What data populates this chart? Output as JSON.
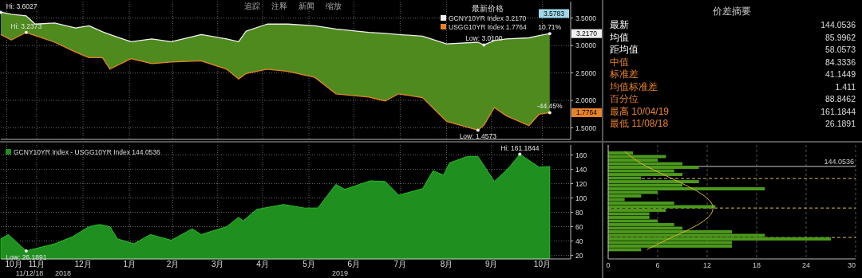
{
  "chart_data": [
    {
      "type": "line",
      "x": [
        "2018-10-22",
        "2018-10-29",
        "2018-11-08",
        "2018-11-14",
        "2018-11-27",
        "2018-12-11",
        "2018-12-20",
        "2018-12-29",
        "2019-01-03",
        "2019-01-17",
        "2019-01-31",
        "2019-02-13",
        "2019-03-05",
        "2019-03-22",
        "2019-03-30",
        "2019-04-04",
        "2019-04-18",
        "2019-05-02",
        "2019-05-20",
        "2019-06-03",
        "2019-06-25",
        "2019-07-06",
        "2019-07-15",
        "2019-07-31",
        "2019-08-16",
        "2019-09-06",
        "2019-09-10",
        "2019-09-17",
        "2019-09-25",
        "2019-10-10",
        "2019-10-17",
        "2019-10-24"
      ],
      "series": [
        {
          "name": "GCNY10YR Index 3.2170",
          "color": "#f0f0f0",
          "values": [
            3.61,
            3.57,
            3.54,
            3.39,
            3.41,
            3.32,
            3.36,
            3.25,
            3.2,
            3.07,
            3.12,
            3.07,
            3.2,
            3.12,
            3.07,
            3.26,
            3.39,
            3.39,
            3.36,
            3.3,
            3.24,
            3.22,
            3.2,
            3.17,
            3.03,
            3.06,
            3.01,
            3.09,
            3.12,
            3.14,
            3.18,
            3.217
          ],
          "lower": [
            3.2,
            3.1,
            3.2373,
            3.18,
            3.06,
            2.88,
            2.78,
            2.78,
            2.57,
            2.76,
            2.67,
            2.7,
            2.72,
            2.57,
            2.39,
            2.49,
            2.57,
            2.53,
            2.42,
            2.12,
            2.06,
            1.99,
            2.12,
            2.05,
            1.62,
            1.4573,
            1.55,
            1.87,
            1.72,
            1.54,
            1.75,
            1.7764
          ],
          "upper": [
            3.61,
            3.57,
            3.54,
            3.39,
            3.41,
            3.32,
            3.36,
            3.25,
            3.2,
            3.07,
            3.12,
            3.07,
            3.2,
            3.12,
            3.07,
            3.26,
            3.39,
            3.39,
            3.36,
            3.3,
            3.24,
            3.22,
            3.2,
            3.17,
            3.03,
            3.06,
            3.01,
            3.09,
            3.12,
            3.14,
            3.18,
            3.217
          ]
        },
        {
          "name": "USGG10YR Index 1.7764",
          "color": "#e8832a",
          "values": [
            3.2,
            3.1,
            3.2373,
            3.18,
            3.06,
            2.88,
            2.78,
            2.78,
            2.57,
            2.76,
            2.67,
            2.7,
            2.72,
            2.57,
            2.39,
            2.49,
            2.57,
            2.53,
            2.42,
            2.12,
            2.06,
            1.99,
            2.12,
            2.05,
            1.62,
            1.4573,
            1.55,
            1.87,
            1.72,
            1.54,
            1.75,
            1.7764
          ]
        }
      ],
      "xlim": [
        "2018-10-22",
        "2019-11-07"
      ],
      "xticks": [
        {
          "value": "2018-10-26",
          "label": null
        },
        {
          "value": "2018-11-15",
          "label": null
        },
        {
          "value": "2018-12-16",
          "label": null
        },
        {
          "value": "2019-01-16",
          "label": null
        },
        {
          "value": "2019-02-14",
          "label": null
        },
        {
          "value": "2019-03-16",
          "label": null
        },
        {
          "value": "2019-04-15",
          "label": null
        },
        {
          "value": "2019-05-16",
          "label": null
        },
        {
          "value": "2019-06-15",
          "label": null
        },
        {
          "value": "2019-07-16",
          "label": null
        },
        {
          "value": "2019-08-16",
          "label": null
        },
        {
          "value": "2019-09-15",
          "label": null
        },
        {
          "value": "2019-10-19",
          "label": null
        }
      ],
      "ylim": [
        1.29,
        3.8
      ],
      "yticks": [
        {
          "value": 1.5,
          "label": "1.5000"
        },
        {
          "value": 2,
          "label": "2.0000"
        },
        {
          "value": 2.5,
          "label": "2.5000"
        },
        {
          "value": 3,
          "label": "3.0000"
        },
        {
          "value": 3.5,
          "label": "3.5000"
        }
      ],
      "grid": true,
      "legend": "top right",
      "legend_title": "最新价格",
      "tick_labels": "y",
      "annotations": [
        "追踪",
        "注释",
        "新闻",
        "缩放",
        {
          "text": "Hi: 3.6027",
          "x": "2018-10-22",
          "y": 3.6027
        },
        {
          "text": "Hi: 3.2373",
          "x": "2018-11-08",
          "y": 3.2373
        },
        {
          "text": "Low: 3.0100",
          "x": "2019-09-10",
          "y": 3.01
        },
        {
          "text": "Low: 1.4573",
          "x": "2019-09-06",
          "y": 1.4573
        },
        {
          "text": "10.71%",
          "x": "2019-10-24",
          "y": 3.217
        },
        {
          "text": "-44.45%",
          "x": "2019-10-24",
          "y": 1.7764
        },
        "3.2170",
        "1.7764",
        "3.5783"
      ]
    },
    {
      "type": "other",
      "title": "价差摘要",
      "categories": [
        "最新",
        "均值",
        "距均值",
        "中值",
        "标准差",
        "均值标准差",
        "百分位",
        "最高 10/04/19",
        "最低 11/08/18"
      ],
      "values": [
        144.0536,
        85.9962,
        58.0573,
        84.3336,
        41.1449,
        1.411,
        88.8462,
        161.1844,
        26.1891
      ],
      "colors": [
        "#ffffff",
        "#ffffff",
        "#ffffff",
        "#e8832a",
        "#e8832a",
        "#e8832a",
        "#e8832a",
        "#e8832a",
        "#e8832a"
      ],
      "data_labels": true
    },
    {
      "type": "area",
      "x": [
        "2018-10-22",
        "2018-10-27",
        "2018-11-08",
        "2018-11-27",
        "2018-12-09",
        "2018-12-20",
        "2018-12-27",
        "2019-01-03",
        "2019-01-08",
        "2019-01-19",
        "2019-01-30",
        "2019-02-13",
        "2019-02-27",
        "2019-03-05",
        "2019-03-22",
        "2019-03-30",
        "2019-04-02",
        "2019-04-11",
        "2019-04-29",
        "2019-05-13",
        "2019-05-22",
        "2019-06-03",
        "2019-06-09",
        "2019-06-26",
        "2019-07-06",
        "2019-07-15",
        "2019-07-31",
        "2019-08-07",
        "2019-08-14",
        "2019-08-18",
        "2019-08-30",
        "2019-09-06",
        "2019-09-17",
        "2019-09-27",
        "2019-10-04",
        "2019-10-17",
        "2019-10-24"
      ],
      "series": [
        {
          "name": "GCNY10YR Index - USGG10YR Index 144.0536",
          "color": "#1f8f1f",
          "values": [
            43,
            49,
            26.1891,
            36,
            46,
            60,
            63,
            60,
            43,
            36,
            49,
            41,
            57,
            49,
            60,
            73,
            68,
            84,
            91,
            86,
            86,
            119,
            112,
            124,
            123,
            104,
            113,
            138,
            132,
            149,
            158,
            158,
            123,
            143,
            161.1844,
            143,
            144.0536
          ]
        }
      ],
      "xlim": [
        "2018-10-22",
        "2019-11-07"
      ],
      "xticks": [
        {
          "value": "2018-10-26",
          "label": "10月"
        },
        {
          "value": "2018-11-15",
          "label": "11月"
        },
        {
          "value": "2018-12-16",
          "label": "12月"
        },
        {
          "value": "2019-01-16",
          "label": "1月"
        },
        {
          "value": "2019-02-14",
          "label": "2月"
        },
        {
          "value": "2019-03-16",
          "label": "3月"
        },
        {
          "value": "2019-04-15",
          "label": "4月"
        },
        {
          "value": "2019-05-16",
          "label": "5月"
        },
        {
          "value": "2019-06-15",
          "label": "6月"
        },
        {
          "value": "2019-07-16",
          "label": "7月"
        },
        {
          "value": "2019-08-16",
          "label": "8月"
        },
        {
          "value": "2019-09-15",
          "label": "9月"
        },
        {
          "value": "2019-10-19",
          "label": "10月"
        }
      ],
      "ylim": [
        15,
        174
      ],
      "yticks": [
        20,
        40,
        60,
        80,
        100,
        120,
        140,
        160
      ],
      "grid": true,
      "legend": "top left",
      "annotations": [
        {
          "text": "Low: 26.1891",
          "x": "2018-11-08",
          "y": 26.1891
        },
        {
          "text": "Hi: 161.1844",
          "x": "2019-10-04",
          "y": 161.1844
        },
        "11/12/18",
        "2018",
        "2019"
      ]
    },
    {
      "type": "histogram",
      "orientation": "horizontal",
      "color": "#4c9a1c",
      "bins": [
        25,
        30,
        35,
        40,
        45,
        50,
        55,
        60,
        65,
        70,
        75,
        80,
        85,
        90,
        95,
        100,
        105,
        110,
        115,
        120,
        125,
        130,
        135,
        140,
        145,
        150,
        155,
        160,
        165
      ],
      "values": [
        4,
        15,
        15,
        27,
        19,
        15,
        9,
        8,
        6,
        5,
        5,
        7,
        13,
        8,
        2,
        4,
        6,
        19,
        9,
        11,
        4,
        9,
        8,
        11,
        9,
        6,
        7,
        3
      ],
      "series": [
        {
          "type": "line",
          "color": "#d8b830",
          "x": [
            165,
            155,
            145,
            135,
            125,
            115,
            105,
            95,
            86,
            75,
            65,
            55,
            45,
            35,
            28
          ],
          "values": [
            2,
            3.1,
            4.5,
            6.3,
            8.1,
            9.9,
            11.4,
            12.4,
            12.7,
            12.3,
            11.2,
            9.6,
            7.7,
            5.9,
            4.7
          ]
        }
      ],
      "xlim": [
        0,
        30
      ],
      "xticks": [
        0,
        6,
        12,
        18,
        24,
        30
      ],
      "ylim": [
        15,
        174
      ],
      "tick_labels": "x",
      "grid": "x",
      "ref_lines": [
        {
          "axis": "y",
          "value": 144.0536,
          "label": "144.0536",
          "color": "#cccccc",
          "line_style": "solid"
        },
        {
          "axis": "y",
          "value": 127.1411,
          "color": "#d8c050",
          "line_style": "dashed"
        },
        {
          "axis": "y",
          "value": 85.9962,
          "color": "#d8c050",
          "line_style": "dashed"
        },
        {
          "axis": "y",
          "value": 44.8513,
          "color": "#d8c050",
          "line_style": "dashed"
        }
      ]
    }
  ]
}
